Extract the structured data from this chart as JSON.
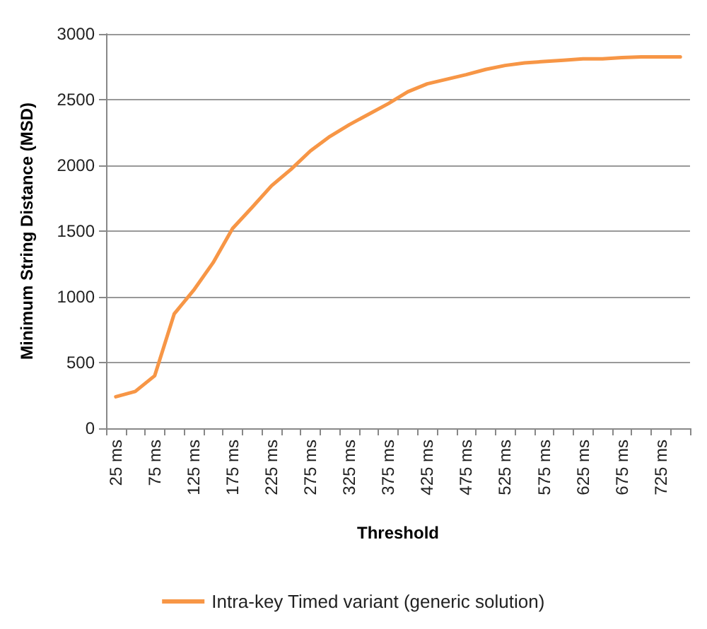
{
  "chart_data": {
    "type": "line",
    "xlabel": "Threshold",
    "ylabel": "Minimum String Distance (MSD)",
    "categories": [
      "25 ms",
      null,
      "75 ms",
      null,
      "125 ms",
      null,
      "175 ms",
      null,
      "225 ms",
      null,
      "275 ms",
      null,
      "325 ms",
      null,
      "375 ms",
      null,
      "425 ms",
      null,
      "475 ms",
      null,
      "525 ms",
      null,
      "575 ms",
      null,
      "625 ms",
      null,
      "675 ms",
      null,
      "725 ms",
      null
    ],
    "series": [
      {
        "name": "Intra-key Timed variant (generic solution)",
        "color": "#f79646",
        "values": [
          240,
          280,
          400,
          870,
          1050,
          1260,
          1520,
          1680,
          1845,
          1970,
          2110,
          2220,
          2310,
          2390,
          2470,
          2560,
          2620,
          2655,
          2690,
          2730,
          2760,
          2780,
          2790,
          2800,
          2810,
          2810,
          2820,
          2825,
          2825,
          2825
        ]
      }
    ],
    "ylim": [
      0,
      3000
    ],
    "yticks": [
      0,
      500,
      1000,
      1500,
      2000,
      2500,
      3000
    ],
    "grid": "y",
    "legend": "bottom",
    "marker": "none",
    "line_style": "solid"
  }
}
